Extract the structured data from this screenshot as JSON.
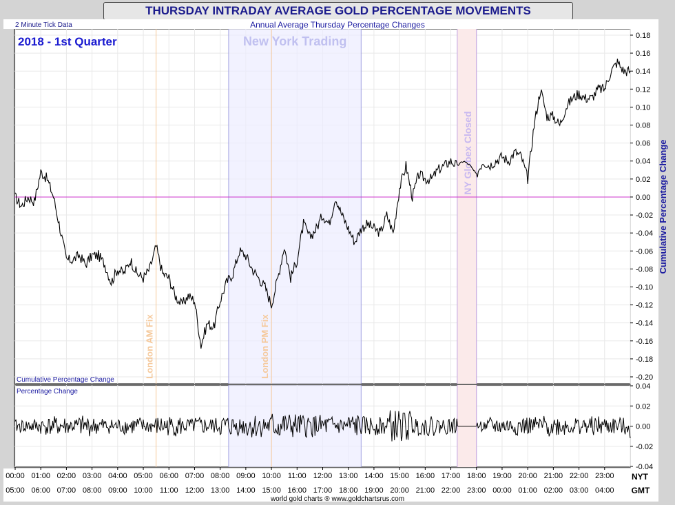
{
  "header": {
    "title": "THURSDAY INTRADAY AVERAGE GOLD PERCENTAGE MOVEMENTS",
    "tick_note": "2 Minute Tick Data",
    "subtitle": "Annual Average Thursday Percentage Changes",
    "period": "2018 - 1st Quarter",
    "footer": "world gold charts ® www.goldchartsrus.com"
  },
  "chart_data": [
    {
      "type": "line",
      "name": "cumulative",
      "title": "Annual Average Thursday Percentage Changes",
      "panel_label": "Cumulative Percentage Change",
      "ylabel": "Cumulative Percentage Change",
      "ylim": [
        -0.2,
        0.18
      ],
      "yticks": [
        "0.18",
        "0.16",
        "0.14",
        "0.12",
        "0.10",
        "0.08",
        "0.06",
        "0.04",
        "0.02",
        "0.00",
        "-0.02",
        "-0.04",
        "-0.06",
        "-0.08",
        "-0.10",
        "-0.12",
        "-0.14",
        "-0.16",
        "-0.18",
        "-0.20"
      ],
      "zero_line_color": "#cc33cc",
      "line_color": "#000000",
      "grid": true,
      "x_hours": [
        0,
        0.25,
        0.5,
        0.75,
        1.0,
        1.25,
        1.5,
        1.75,
        2.0,
        2.25,
        2.5,
        2.75,
        3.0,
        3.25,
        3.5,
        3.75,
        4.0,
        4.25,
        4.5,
        4.75,
        5.0,
        5.25,
        5.5,
        5.75,
        6.0,
        6.25,
        6.5,
        6.75,
        7.0,
        7.25,
        7.5,
        7.75,
        8.0,
        8.25,
        8.5,
        8.75,
        9.0,
        9.25,
        9.5,
        9.75,
        10.0,
        10.25,
        10.5,
        10.75,
        11.0,
        11.25,
        11.5,
        11.75,
        12.0,
        12.25,
        12.5,
        12.75,
        13.0,
        13.25,
        13.5,
        13.75,
        14.0,
        14.25,
        14.5,
        14.75,
        15.0,
        15.25,
        15.5,
        15.75,
        16.0,
        16.25,
        16.5,
        16.75,
        17.0,
        17.25,
        17.5,
        17.75,
        18.0,
        18.25,
        18.5,
        18.75,
        19.0,
        19.25,
        19.5,
        19.75,
        20.0,
        20.25,
        20.5,
        20.75,
        21.0,
        21.25,
        21.5,
        21.75,
        22.0,
        22.25,
        22.5,
        22.75,
        23.0,
        23.25,
        23.5,
        23.75,
        24.0
      ],
      "values": [
        0.0,
        -0.01,
        0.0,
        -0.005,
        0.028,
        0.02,
        0.0,
        -0.035,
        -0.07,
        -0.07,
        -0.065,
        -0.075,
        -0.065,
        -0.065,
        -0.075,
        -0.095,
        -0.08,
        -0.085,
        -0.07,
        -0.085,
        -0.09,
        -0.08,
        -0.055,
        -0.085,
        -0.09,
        -0.11,
        -0.12,
        -0.11,
        -0.115,
        -0.165,
        -0.14,
        -0.145,
        -0.115,
        -0.095,
        -0.085,
        -0.06,
        -0.065,
        -0.08,
        -0.09,
        -0.1,
        -0.12,
        -0.09,
        -0.055,
        -0.09,
        -0.07,
        -0.03,
        -0.045,
        -0.035,
        -0.02,
        -0.03,
        0.0,
        -0.02,
        -0.035,
        -0.05,
        -0.035,
        -0.03,
        -0.035,
        -0.04,
        -0.02,
        -0.04,
        0.01,
        0.035,
        0.0,
        0.025,
        0.02,
        0.02,
        0.03,
        0.035,
        0.04,
        0.035,
        0.04,
        0.035,
        0.025,
        0.04,
        0.035,
        0.04,
        0.045,
        0.04,
        0.05,
        0.045,
        0.02,
        0.08,
        0.12,
        0.09,
        0.09,
        0.08,
        0.1,
        0.11,
        0.115,
        0.11,
        0.11,
        0.12,
        0.12,
        0.14,
        0.15,
        0.14,
        0.14
      ]
    },
    {
      "type": "line",
      "name": "per_interval",
      "panel_label": "Percentage Change",
      "ylim": [
        -0.04,
        0.04
      ],
      "yticks": [
        "0.04",
        "0.02",
        "0.00",
        "-0.02",
        "-0.04"
      ],
      "line_color": "#000000",
      "x_hours": [
        0,
        0.5,
        1.0,
        1.5,
        2.0,
        2.5,
        3.0,
        3.5,
        4.0,
        4.5,
        5.0,
        5.5,
        6.0,
        6.5,
        7.0,
        7.5,
        8.0,
        8.5,
        9.0,
        9.5,
        10.0,
        10.5,
        11.0,
        11.5,
        12.0,
        12.5,
        13.0,
        13.5,
        14.0,
        14.5,
        15.0,
        15.5,
        16.0,
        16.5,
        17.0,
        17.5,
        18.0,
        18.5,
        19.0,
        19.5,
        20.0,
        20.5,
        21.0,
        21.5,
        22.0,
        22.5,
        23.0,
        23.5,
        24.0
      ],
      "values": [
        0.004,
        -0.006,
        0.01,
        -0.012,
        0.008,
        0.014,
        -0.01,
        0.006,
        -0.008,
        0.01,
        -0.006,
        0.012,
        -0.014,
        0.006,
        0.01,
        -0.008,
        0.016,
        -0.012,
        0.02,
        -0.015,
        0.025,
        -0.02,
        0.018,
        -0.016,
        0.014,
        -0.01,
        0.02,
        -0.012,
        0.01,
        -0.03,
        0.028,
        -0.01,
        0.012,
        -0.008,
        0.006,
        0.0,
        0.0,
        0.01,
        -0.008,
        0.012,
        -0.01,
        0.014,
        -0.012,
        0.01,
        -0.008,
        0.012,
        -0.01,
        0.008,
        -0.012
      ]
    }
  ],
  "x_axis": {
    "nyt_label": "NYT",
    "gmt_label": "GMT",
    "nyt_ticks": [
      "00:00",
      "01:00",
      "02:00",
      "03:00",
      "04:00",
      "05:00",
      "06:00",
      "07:00",
      "08:00",
      "09:00",
      "10:00",
      "11:00",
      "12:00",
      "13:00",
      "14:00",
      "15:00",
      "16:00",
      "17:00",
      "18:00",
      "19:00",
      "20:00",
      "21:00",
      "22:00",
      "23:00"
    ],
    "gmt_ticks": [
      "05:00",
      "06:00",
      "07:00",
      "08:00",
      "09:00",
      "10:00",
      "11:00",
      "12:00",
      "13:00",
      "14:00",
      "15:00",
      "16:00",
      "17:00",
      "18:00",
      "19:00",
      "20:00",
      "21:00",
      "22:00",
      "23:00",
      "00:00",
      "01:00",
      "02:00",
      "03:00",
      "04:00"
    ]
  },
  "annotations": {
    "london_am_fix": {
      "label": "London AM Fix",
      "hour": 5.5
    },
    "london_pm_fix": {
      "label": "London PM Fix",
      "hour": 10.0
    },
    "ny_trading": {
      "label": "New York Trading",
      "start_hour": 8.33,
      "end_hour": 13.5
    },
    "globex_closed": {
      "label": "NY Globex Closed",
      "start_hour": 17.25,
      "end_hour": 18.0
    }
  },
  "colors": {
    "fix_line": "#f5c89a",
    "fix_text": "#f5c89a",
    "ny_band": "#ececff",
    "ny_border": "#a0a0e0",
    "ny_text": "#c0c0f0",
    "globex_band": "#fbeaea",
    "globex_border": "#c0a0e0",
    "globex_text": "#c8b8f0",
    "grid": "#e8e8e8",
    "axis_text": "#1a1a8c",
    "zero_line": "#cc33cc"
  }
}
